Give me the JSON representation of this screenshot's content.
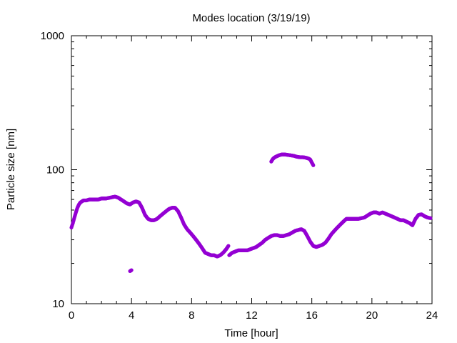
{
  "chart_data": {
    "type": "scatter",
    "title": "Modes location (3/19/19)",
    "xlabel": "Time [hour]",
    "ylabel": "Particle size [nm]",
    "xlim": [
      0,
      24
    ],
    "ylim": [
      10,
      1000
    ],
    "yscale": "log",
    "grid": false,
    "legend": "none",
    "x_ticks": [
      0,
      4,
      8,
      12,
      16,
      20,
      24
    ],
    "x_tick_labels": [
      "0",
      "4",
      "8",
      "12",
      "16",
      "20",
      "24"
    ],
    "y_ticks": [
      10,
      100,
      1000
    ],
    "y_tick_labels": [
      "10",
      "100",
      "1000"
    ],
    "marker_color": "#9400d3",
    "series": [
      {
        "x": [
          0.0,
          0.1,
          0.2,
          0.3,
          0.4,
          0.5,
          0.6,
          0.7,
          0.8,
          1.0,
          1.2,
          1.5,
          1.8,
          2.0,
          2.3,
          2.6,
          2.9,
          3.1,
          3.3,
          3.5,
          3.7,
          3.9,
          4.1,
          4.3,
          4.5,
          4.7,
          4.9,
          5.1,
          5.3,
          5.5,
          5.7,
          5.9,
          6.1,
          6.3,
          6.5,
          6.7,
          6.9,
          7.1,
          7.3,
          7.5,
          7.7,
          7.9,
          8.1,
          8.3,
          8.5,
          8.7,
          8.9,
          9.1,
          9.3,
          9.5,
          9.7,
          9.9,
          10.1,
          10.3,
          10.45
        ],
        "y": [
          37,
          40,
          44,
          48,
          52,
          55,
          57,
          58,
          59,
          59,
          60,
          60,
          60,
          61,
          61,
          62,
          63,
          62,
          60,
          58,
          56,
          55,
          57,
          58,
          57,
          52,
          46,
          43,
          42,
          42,
          43,
          45,
          47,
          49,
          51,
          52,
          52,
          49,
          44,
          39,
          36,
          34,
          32,
          30,
          28,
          26,
          24,
          23.5,
          23,
          23,
          22.5,
          23,
          24,
          25.5,
          27
        ]
      },
      {
        "x": [
          3.9,
          4.0
        ],
        "y": [
          17.5,
          17.8
        ]
      },
      {
        "x": [
          10.5,
          10.7,
          10.9,
          11.1,
          11.3,
          11.5,
          11.7,
          11.9,
          12.1,
          12.3,
          12.5,
          12.7,
          12.9,
          13.1,
          13.3,
          13.5,
          13.7,
          13.9,
          14.1,
          14.3,
          14.5,
          14.7,
          14.9,
          15.1,
          15.3,
          15.5,
          15.7,
          15.9,
          16.1,
          16.3,
          16.5,
          16.7,
          16.9,
          17.1,
          17.3,
          17.5,
          17.7,
          17.9,
          18.1,
          18.3,
          18.5,
          18.7,
          18.9,
          19.1,
          19.3,
          19.5,
          19.7,
          19.9,
          20.1,
          20.3,
          20.5,
          20.7,
          20.9,
          21.1,
          21.3,
          21.5,
          21.7,
          21.9,
          22.1,
          22.3,
          22.5,
          22.7,
          22.9,
          23.1,
          23.3,
          23.5,
          23.7,
          23.9
        ],
        "y": [
          23,
          24,
          24.5,
          25,
          25,
          25,
          25,
          25.5,
          26,
          26.5,
          27.5,
          28.5,
          30,
          31,
          32,
          32.5,
          32.5,
          32,
          32,
          32.5,
          33,
          34,
          35,
          35.5,
          36,
          35,
          32,
          29,
          27,
          26.5,
          27,
          27.5,
          28.5,
          30.5,
          33,
          35,
          37,
          39,
          41,
          43,
          43,
          43,
          43,
          43,
          43.5,
          44,
          45.5,
          47,
          48,
          48,
          47,
          48,
          47,
          46,
          45,
          44,
          43,
          42,
          42,
          41,
          40,
          38.5,
          43,
          46,
          46.5,
          45,
          44,
          43.5
        ]
      },
      {
        "x": [
          13.3,
          13.4,
          13.5,
          13.6,
          13.8,
          14.0,
          14.2,
          14.4,
          14.6,
          14.8,
          15.0,
          15.2,
          15.4,
          15.6,
          15.8,
          15.9,
          16.0,
          16.1
        ],
        "y": [
          115,
          120,
          123,
          125,
          128,
          130,
          130,
          129,
          128,
          127,
          125,
          124,
          124,
          123,
          121,
          119,
          113,
          108
        ]
      }
    ]
  }
}
